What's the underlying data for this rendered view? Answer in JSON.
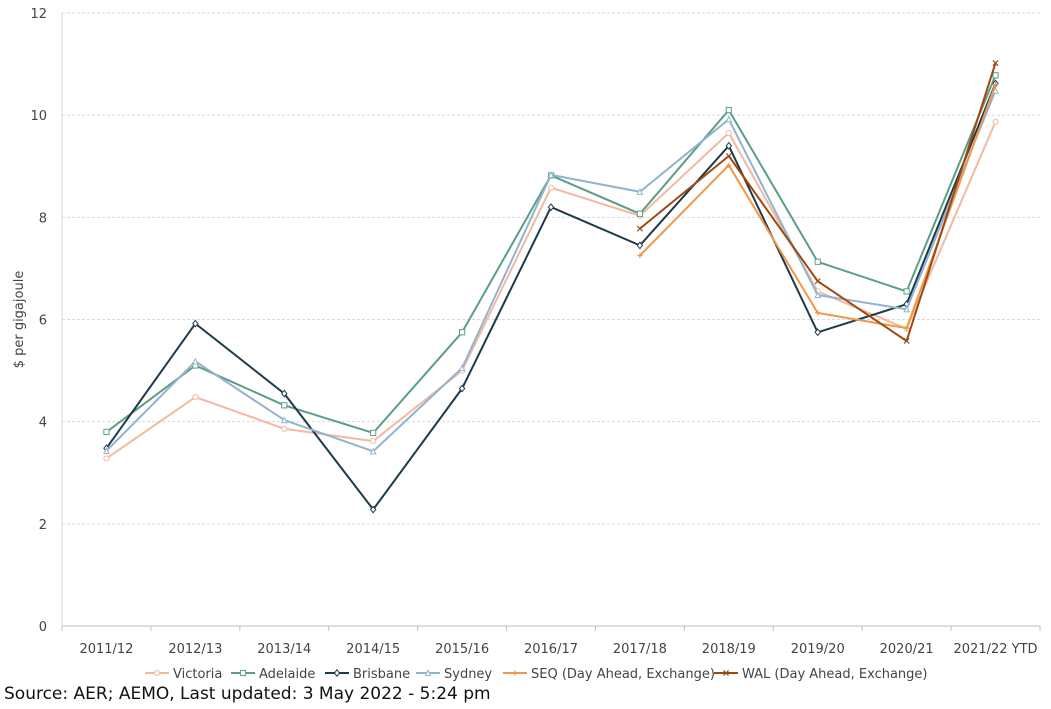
{
  "chart_data": {
    "type": "line",
    "title": "",
    "xlabel": "",
    "ylabel": "$ per gigajoule",
    "ylim": [
      0,
      12
    ],
    "yticks": [
      "0",
      "2",
      "4",
      "6",
      "8",
      "10",
      "12"
    ],
    "grid": true,
    "legend_position": "bottom",
    "categories": [
      "2011/12",
      "2012/13",
      "2013/14",
      "2014/15",
      "2015/16",
      "2016/17",
      "2017/18",
      "2018/19",
      "2019/20",
      "2020/21",
      "2021/22 YTD"
    ],
    "series": [
      {
        "name": "Victoria",
        "color": "#F2B9A1",
        "marker": "circle",
        "values": [
          3.28,
          4.48,
          3.86,
          3.62,
          5.0,
          8.58,
          8.03,
          9.65,
          6.55,
          5.82,
          9.87
        ]
      },
      {
        "name": "Adelaide",
        "color": "#5A9E88",
        "marker": "square",
        "values": [
          3.8,
          5.1,
          4.32,
          3.78,
          5.75,
          8.82,
          8.07,
          10.1,
          7.13,
          6.55,
          10.78
        ]
      },
      {
        "name": "Brisbane",
        "color": "#1E3A4A",
        "marker": "diamond",
        "values": [
          3.48,
          5.92,
          4.55,
          2.28,
          4.65,
          8.2,
          7.45,
          9.4,
          5.75,
          6.3,
          10.62
        ]
      },
      {
        "name": "Sydney",
        "color": "#91B3CF",
        "marker": "triangle",
        "values": [
          3.43,
          5.18,
          4.03,
          3.42,
          5.05,
          8.83,
          8.5,
          9.92,
          6.48,
          6.2,
          10.48
        ]
      },
      {
        "name": "SEQ (Day Ahead, Exchange)",
        "color": "#F0984A",
        "marker": "plus",
        "values": [
          null,
          null,
          null,
          null,
          null,
          null,
          7.25,
          9.02,
          6.13,
          5.83,
          10.6
        ]
      },
      {
        "name": "WAL (Day Ahead, Exchange)",
        "color": "#9C4A12",
        "marker": "cross",
        "values": [
          null,
          null,
          null,
          null,
          null,
          null,
          7.78,
          9.2,
          6.75,
          5.58,
          11.02
        ]
      }
    ]
  },
  "source": "Source: AER; AEMO, Last updated: 3 May 2022 - 5:24 pm"
}
